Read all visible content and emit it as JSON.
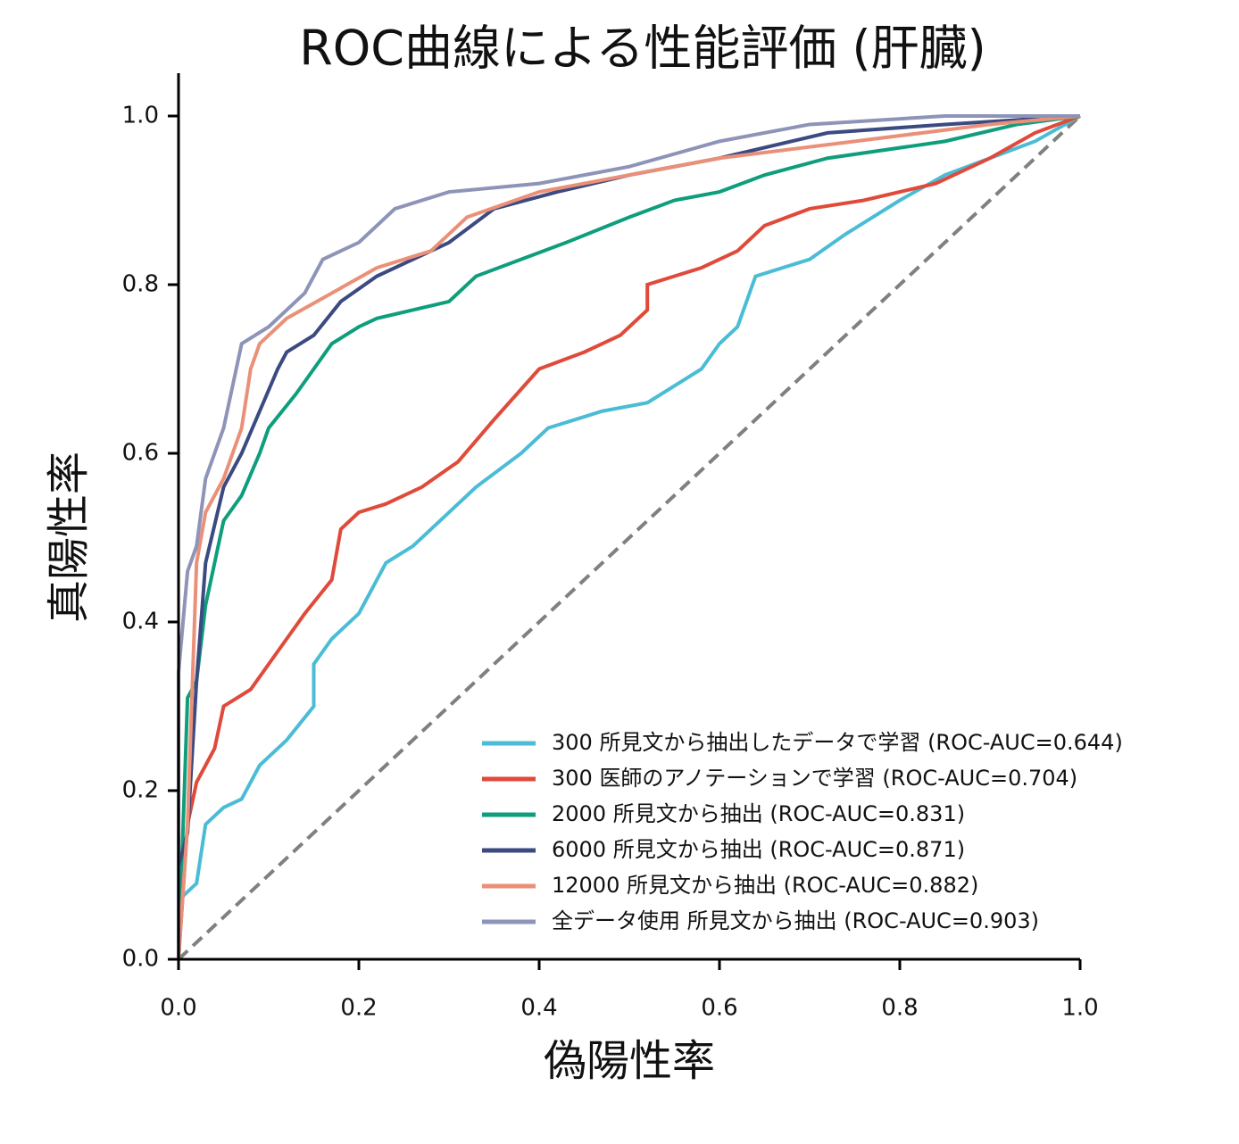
{
  "chart_data": {
    "type": "line",
    "title": "ROC曲線による性能評価 (肝臓)",
    "x_label": "偽陽性率",
    "y_label": "真陽性率",
    "xlim": [
      0,
      1
    ],
    "ylim": [
      0,
      1
    ],
    "xticks": [
      {
        "value": 0,
        "label": "0.0"
      },
      0.2,
      0.4,
      0.6,
      0.8,
      {
        "value": 1,
        "label": "1.0"
      }
    ],
    "yticks": [
      {
        "value": 0,
        "label": "0.0"
      },
      0.2,
      0.4,
      0.6,
      0.8,
      {
        "value": 1,
        "label": "1.0"
      }
    ],
    "legend": "lower right",
    "series": [
      {
        "name": "300 所見文から抽出したデータで学習 (ROC-AUC=0.644)",
        "color": "#4bbcd6",
        "x": [
          0,
          0,
          0.02,
          0.03,
          0.05,
          0.07,
          0.09,
          0.12,
          0.15,
          0.15,
          0.17,
          0.2,
          0.23,
          0.26,
          0.3,
          0.33,
          0.38,
          0.41,
          0.47,
          0.52,
          0.58,
          0.6,
          0.62,
          0.64,
          0.7,
          0.74,
          0.8,
          0.85,
          0.9,
          0.95,
          1
        ],
        "values": [
          0,
          0.07,
          0.09,
          0.16,
          0.18,
          0.19,
          0.23,
          0.26,
          0.3,
          0.35,
          0.38,
          0.41,
          0.47,
          0.49,
          0.53,
          0.56,
          0.6,
          0.63,
          0.65,
          0.66,
          0.7,
          0.73,
          0.75,
          0.81,
          0.83,
          0.86,
          0.9,
          0.93,
          0.95,
          0.97,
          1
        ]
      },
      {
        "name": "300 医師のアノテーションで学習 (ROC-AUC=0.704)",
        "color": "#e04a3a",
        "x": [
          0,
          0.01,
          0.02,
          0.04,
          0.05,
          0.08,
          0.1,
          0.12,
          0.14,
          0.17,
          0.18,
          0.2,
          0.23,
          0.27,
          0.31,
          0.35,
          0.4,
          0.45,
          0.49,
          0.52,
          0.52,
          0.58,
          0.62,
          0.65,
          0.7,
          0.76,
          0.84,
          0.9,
          0.95,
          1
        ],
        "values": [
          0,
          0.16,
          0.21,
          0.25,
          0.3,
          0.32,
          0.35,
          0.38,
          0.41,
          0.45,
          0.51,
          0.53,
          0.54,
          0.56,
          0.59,
          0.64,
          0.7,
          0.72,
          0.74,
          0.77,
          0.8,
          0.82,
          0.84,
          0.87,
          0.89,
          0.9,
          0.92,
          0.95,
          0.98,
          1
        ]
      },
      {
        "name": "2000 所見文から抽出 (ROC-AUC=0.831)",
        "color": "#0e9e7c",
        "x": [
          0,
          0.01,
          0.02,
          0.03,
          0.04,
          0.05,
          0.07,
          0.09,
          0.1,
          0.13,
          0.15,
          0.17,
          0.2,
          0.22,
          0.3,
          0.33,
          0.38,
          0.43,
          0.5,
          0.55,
          0.6,
          0.65,
          0.72,
          0.85,
          0.93,
          1
        ],
        "values": [
          0,
          0.31,
          0.33,
          0.42,
          0.47,
          0.52,
          0.55,
          0.6,
          0.63,
          0.67,
          0.7,
          0.73,
          0.75,
          0.76,
          0.78,
          0.81,
          0.83,
          0.85,
          0.88,
          0.9,
          0.91,
          0.93,
          0.95,
          0.97,
          0.99,
          1
        ]
      },
      {
        "name": "6000 所見文から抽出 (ROC-AUC=0.871)",
        "color": "#3b4a80",
        "x": [
          0,
          0,
          0.01,
          0.02,
          0.03,
          0.05,
          0.07,
          0.09,
          0.11,
          0.12,
          0.15,
          0.18,
          0.22,
          0.3,
          0.35,
          0.42,
          0.5,
          0.6,
          0.72,
          0.85,
          1
        ],
        "values": [
          0,
          0.11,
          0.15,
          0.33,
          0.47,
          0.56,
          0.6,
          0.65,
          0.7,
          0.72,
          0.74,
          0.78,
          0.81,
          0.85,
          0.89,
          0.91,
          0.93,
          0.95,
          0.98,
          0.99,
          1
        ]
      },
      {
        "name": "12000 所見文から抽出 (ROC-AUC=0.882)",
        "color": "#eb9078",
        "x": [
          0,
          0.01,
          0.02,
          0.03,
          0.05,
          0.07,
          0.08,
          0.09,
          0.12,
          0.17,
          0.22,
          0.28,
          0.32,
          0.4,
          0.5,
          0.6,
          0.75,
          0.9,
          1
        ],
        "values": [
          0,
          0.16,
          0.47,
          0.53,
          0.57,
          0.63,
          0.7,
          0.73,
          0.76,
          0.79,
          0.82,
          0.84,
          0.88,
          0.91,
          0.93,
          0.95,
          0.97,
          0.99,
          1
        ]
      },
      {
        "name": "全データ使用 所見文から抽出 (ROC-AUC=0.903)",
        "color": "#8e94b8",
        "x": [
          0,
          0,
          0.01,
          0.02,
          0.03,
          0.05,
          0.07,
          0.1,
          0.14,
          0.16,
          0.2,
          0.24,
          0.3,
          0.4,
          0.5,
          0.6,
          0.7,
          0.85,
          1
        ],
        "values": [
          0,
          0.34,
          0.46,
          0.49,
          0.57,
          0.63,
          0.73,
          0.75,
          0.79,
          0.83,
          0.85,
          0.89,
          0.91,
          0.92,
          0.94,
          0.97,
          0.99,
          1,
          1
        ]
      }
    ]
  }
}
